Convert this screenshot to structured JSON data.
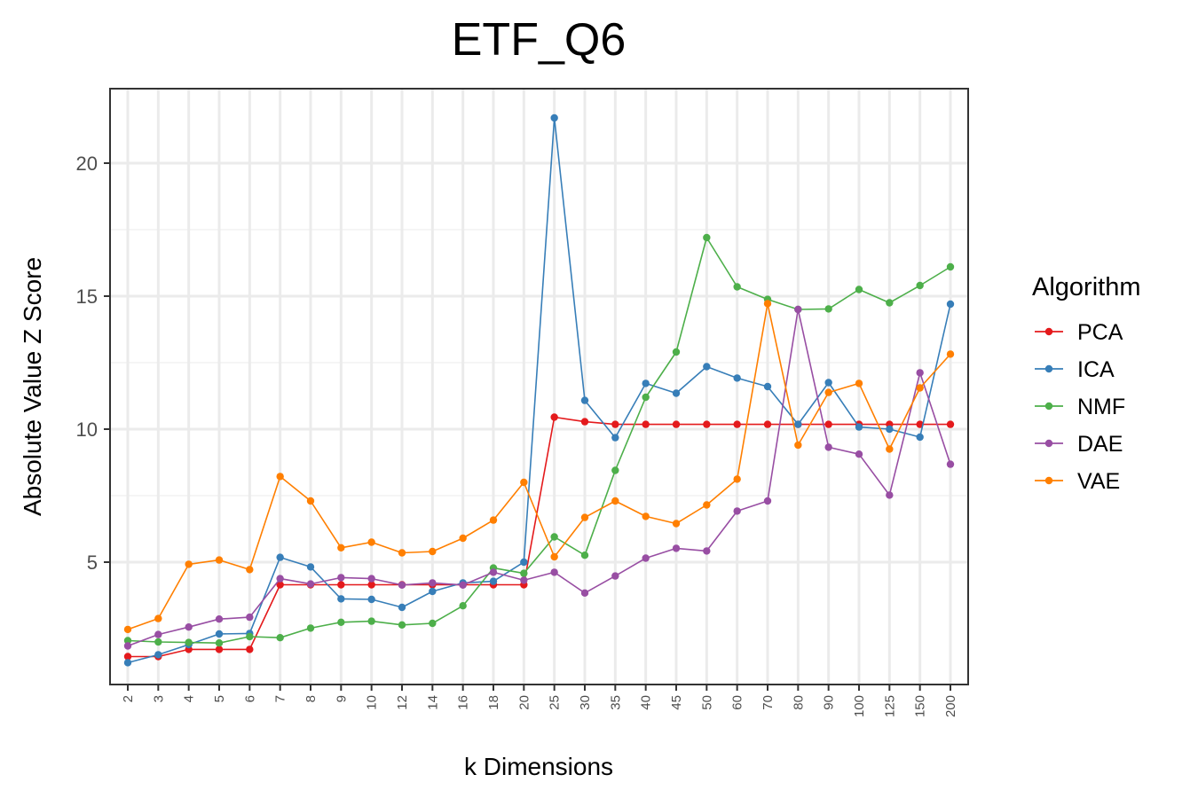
{
  "chart_data": {
    "type": "line",
    "title": "ETF_Q6",
    "xlabel": "k Dimensions",
    "ylabel": "Absolute Value Z Score",
    "categories": [
      "2",
      "3",
      "4",
      "5",
      "6",
      "7",
      "8",
      "9",
      "10",
      "12",
      "14",
      "16",
      "18",
      "20",
      "25",
      "30",
      "35",
      "40",
      "45",
      "50",
      "60",
      "70",
      "80",
      "90",
      "100",
      "125",
      "150",
      "200"
    ],
    "ylim": [
      0.4,
      22.8
    ],
    "yticks": [
      5,
      10,
      15,
      20
    ],
    "grid": true,
    "legend": {
      "title": "Algorithm",
      "position": "right"
    },
    "series": [
      {
        "name": "PCA",
        "color": "#E41A1C",
        "values": [
          1.45,
          1.45,
          1.72,
          1.72,
          1.72,
          4.15,
          4.15,
          4.15,
          4.15,
          4.15,
          4.15,
          4.15,
          4.15,
          4.15,
          10.45,
          10.28,
          10.18,
          10.18,
          10.18,
          10.18,
          10.18,
          10.18,
          10.18,
          10.18,
          10.18,
          10.18,
          10.18,
          10.18
        ]
      },
      {
        "name": "ICA",
        "color": "#377EB8",
        "values": [
          1.22,
          1.52,
          1.9,
          2.3,
          2.32,
          5.18,
          4.82,
          3.62,
          3.6,
          3.3,
          3.9,
          4.22,
          4.28,
          5.0,
          21.7,
          11.08,
          9.68,
          11.72,
          11.35,
          12.35,
          11.92,
          11.6,
          10.18,
          11.75,
          10.08,
          10.0,
          9.7,
          14.7
        ]
      },
      {
        "name": "NMF",
        "color": "#4DAF4A",
        "values": [
          2.05,
          2.0,
          1.98,
          1.96,
          2.2,
          2.16,
          2.52,
          2.74,
          2.78,
          2.64,
          2.7,
          3.36,
          4.78,
          4.58,
          5.95,
          5.26,
          8.45,
          11.2,
          12.9,
          17.2,
          15.35,
          14.88,
          14.5,
          14.52,
          15.25,
          14.75,
          15.4,
          16.1
        ]
      },
      {
        "name": "DAE",
        "color": "#984EA3",
        "values": [
          1.85,
          2.28,
          2.56,
          2.86,
          2.93,
          4.38,
          4.18,
          4.42,
          4.38,
          4.14,
          4.22,
          4.14,
          4.62,
          4.32,
          4.62,
          3.84,
          4.48,
          5.15,
          5.52,
          5.42,
          6.92,
          7.3,
          14.5,
          9.32,
          9.06,
          7.52,
          12.12,
          8.68
        ]
      },
      {
        "name": "VAE",
        "color": "#FF7F00",
        "values": [
          2.47,
          2.88,
          4.92,
          5.08,
          4.72,
          8.22,
          7.3,
          5.54,
          5.75,
          5.35,
          5.4,
          5.9,
          6.58,
          8.0,
          5.2,
          6.68,
          7.3,
          6.72,
          6.45,
          7.15,
          8.12,
          14.72,
          9.4,
          11.38,
          11.72,
          9.25,
          11.55,
          12.82
        ]
      }
    ]
  }
}
